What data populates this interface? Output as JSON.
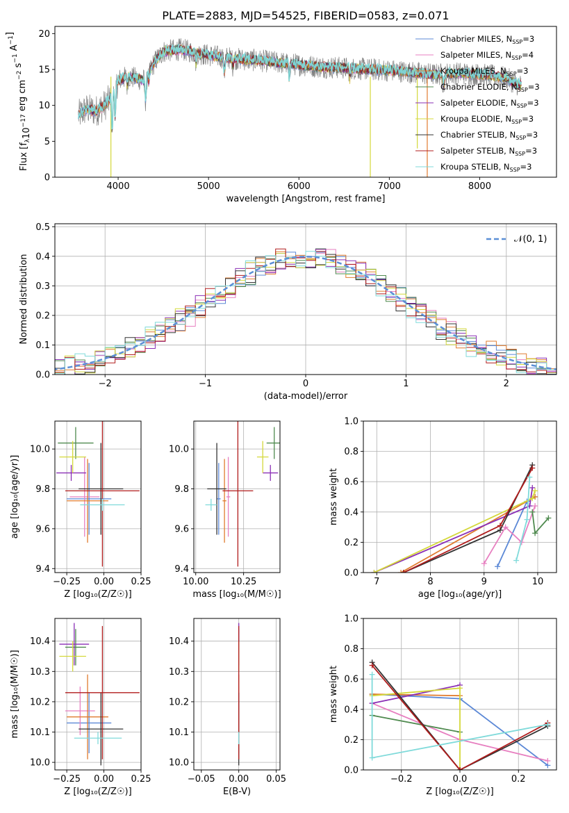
{
  "colors": {
    "ch_miles": "#5b88d6",
    "sa_miles": "#e77fc0",
    "kr_miles": "#e07b2e",
    "ch_elodie": "#4f8a4f",
    "sa_elodie": "#8a2fb5",
    "kr_elodie": "#d4d83a",
    "ch_stelib": "#333333",
    "sa_stelib": "#b01c1c",
    "kr_stelib": "#7fdada",
    "data": "#808080",
    "gaussian": "#5b8fd6"
  },
  "chart_data": [
    {
      "id": "spectrum",
      "type": "line",
      "title": "PLATE=2883, MJD=54525, FIBERID=0583, z=0.071",
      "xlabel": "wavelength [Angstrom, rest frame]",
      "ylabel": "Flux [f_λ 10^-17 erg cm^-2 s^-1 A^-1]",
      "xlim": [
        3300,
        8850
      ],
      "ylim": [
        0,
        21
      ],
      "xticks": [
        "4000",
        "5000",
        "6000",
        "7000",
        "8000"
      ],
      "yticks": [
        "0",
        "5",
        "10",
        "15",
        "20"
      ],
      "legend": "top-right",
      "series": [
        {
          "name": "Chabrier MILES, N_SSP=3",
          "label_main": "Chabrier MILES, N",
          "label_sub": "SSP",
          "label_end": "=3",
          "color_key": "ch_miles"
        },
        {
          "name": "Salpeter MILES, N_SSP=4",
          "label_main": "Salpeter MILES, N",
          "label_sub": "SSP",
          "label_end": "=4",
          "color_key": "sa_miles"
        },
        {
          "name": "Kroupa MILES, N_SSP=3",
          "label_main": "Kroupa MILES, N",
          "label_sub": "SSP",
          "label_end": "=3",
          "color_key": "kr_miles"
        },
        {
          "name": "Chabrier ELODIE, N_SSP=3",
          "label_main": "Chabrier ELODIE, N",
          "label_sub": "SSP",
          "label_end": "=3",
          "color_key": "ch_elodie"
        },
        {
          "name": "Salpeter ELODIE, N_SSP=3",
          "label_main": "Salpeter ELODIE, N",
          "label_sub": "SSP",
          "label_end": "=3",
          "color_key": "sa_elodie"
        },
        {
          "name": "Kroupa ELODIE, N_SSP=3",
          "label_main": "Kroupa ELODIE, N",
          "label_sub": "SSP",
          "label_end": "=3",
          "color_key": "kr_elodie"
        },
        {
          "name": "Chabrier STELIB, N_SSP=3",
          "label_main": "Chabrier STELIB, N",
          "label_sub": "SSP",
          "label_end": "=3",
          "color_key": "ch_stelib"
        },
        {
          "name": "Salpeter STELIB, N_SSP=3",
          "label_main": "Salpeter STELIB, N",
          "label_sub": "SSP",
          "label_end": "=3",
          "color_key": "sa_stelib"
        },
        {
          "name": "Kroupa STELIB, N_SSP=3",
          "label_main": "Kroupa STELIB, N",
          "label_sub": "SSP",
          "label_end": "=3",
          "color_key": "kr_stelib"
        }
      ],
      "continuum": {
        "x": [
          3550,
          3650,
          3750,
          3850,
          3950,
          4000,
          4100,
          4300,
          4400,
          4500,
          4700,
          4900,
          5100,
          5300,
          5600,
          5900,
          6200,
          6500,
          6800,
          7100,
          7300,
          7500,
          7800,
          8100,
          8300,
          8400,
          8450
        ],
        "y": [
          8.5,
          9.5,
          9.2,
          10.0,
          11.5,
          13.5,
          14.0,
          13.5,
          16.0,
          17.5,
          17.8,
          17.2,
          16.8,
          16.5,
          16.2,
          15.8,
          15.4,
          15.2,
          15.0,
          14.8,
          14.5,
          14.3,
          14.5,
          14.2,
          13.8,
          13.0,
          12.8
        ]
      }
    },
    {
      "id": "residuals",
      "type": "bar",
      "xlabel": "(data-model)/error",
      "ylabel": "Normed distribution",
      "xlim": [
        -2.5,
        2.5
      ],
      "ylim": [
        0,
        0.51
      ],
      "xticks": [
        "−2",
        "−1",
        "0",
        "1",
        "2"
      ],
      "yticks": [
        "0.0",
        "0.1",
        "0.2",
        "0.3",
        "0.4",
        "0.5"
      ],
      "legend_label": "𝒩(0, 1)",
      "gaussian": {
        "mean": 0,
        "sigma": 1
      }
    },
    {
      "id": "age-vs-z",
      "type": "scatter",
      "xlabel": "Z [log₁₀(Z/Z☉)]",
      "ylabel": "age  [log₁₀(age/yr)]",
      "xlim": [
        -0.33,
        0.25
      ],
      "ylim": [
        9.38,
        10.14
      ],
      "xticks": [
        "−0.25",
        "0.00",
        "0.25"
      ],
      "yticks": [
        "9.4",
        "9.6",
        "9.8",
        "10.0"
      ],
      "points": [
        {
          "color_key": "ch_miles",
          "x": -0.1,
          "y": 9.75,
          "xerr": 0.15,
          "yerr": 0.18
        },
        {
          "color_key": "sa_miles",
          "x": -0.13,
          "y": 9.76,
          "xerr": 0.1,
          "yerr": 0.2
        },
        {
          "color_key": "kr_miles",
          "x": -0.11,
          "y": 9.74,
          "xerr": 0.14,
          "yerr": 0.21
        },
        {
          "color_key": "ch_elodie",
          "x": -0.19,
          "y": 10.03,
          "xerr": 0.12,
          "yerr": 0.08
        },
        {
          "color_key": "sa_elodie",
          "x": -0.22,
          "y": 9.88,
          "xerr": 0.1,
          "yerr": 0.04
        },
        {
          "color_key": "kr_elodie",
          "x": -0.21,
          "y": 9.96,
          "xerr": 0.09,
          "yerr": 0.08
        },
        {
          "color_key": "ch_stelib",
          "x": -0.02,
          "y": 9.8,
          "xerr": 0.15,
          "yerr": 0.23
        },
        {
          "color_key": "sa_stelib",
          "x": -0.01,
          "y": 9.79,
          "xerr": 0.25,
          "yerr": 0.38
        },
        {
          "color_key": "kr_stelib",
          "x": -0.01,
          "y": 9.72,
          "xerr": 0.15,
          "yerr": 0.03
        }
      ]
    },
    {
      "id": "age-vs-mass",
      "type": "scatter",
      "xlabel": "mass [log₁₀(M/M☉)]",
      "ylabel": "",
      "xlim": [
        9.99,
        10.44
      ],
      "ylim": [
        9.38,
        10.14
      ],
      "xticks": [
        "10.00",
        "10.25"
      ],
      "yticks": [
        "9.4",
        "9.6",
        "9.8",
        "10.0"
      ],
      "points": [
        {
          "color_key": "ch_miles",
          "x": 10.12,
          "y": 9.75,
          "xerr": 0.01,
          "yerr": 0.18
        },
        {
          "color_key": "sa_miles",
          "x": 10.17,
          "y": 9.76,
          "xerr": 0.01,
          "yerr": 0.2
        },
        {
          "color_key": "kr_miles",
          "x": 10.15,
          "y": 9.74,
          "xerr": 0.01,
          "yerr": 0.21
        },
        {
          "color_key": "ch_elodie",
          "x": 10.41,
          "y": 10.03,
          "xerr": 0.04,
          "yerr": 0.08
        },
        {
          "color_key": "sa_elodie",
          "x": 10.39,
          "y": 9.88,
          "xerr": 0.04,
          "yerr": 0.04
        },
        {
          "color_key": "kr_elodie",
          "x": 10.35,
          "y": 9.96,
          "xerr": 0.03,
          "yerr": 0.08
        },
        {
          "color_key": "ch_stelib",
          "x": 10.11,
          "y": 9.8,
          "xerr": 0.05,
          "yerr": 0.23
        },
        {
          "color_key": "sa_stelib",
          "x": 10.22,
          "y": 9.79,
          "xerr": 0.08,
          "yerr": 0.38
        },
        {
          "color_key": "kr_stelib",
          "x": 10.08,
          "y": 9.72,
          "xerr": 0.03,
          "yerr": 0.03
        }
      ]
    },
    {
      "id": "mass-weight-vs-age",
      "type": "line",
      "xlabel": "age  [log₁₀(age/yr)]",
      "ylabel": "mass weight",
      "xlim": [
        6.75,
        10.35
      ],
      "ylim": [
        0,
        1.0
      ],
      "xticks": [
        "7",
        "8",
        "9",
        "10"
      ],
      "yticks": [
        "0.0",
        "0.2",
        "0.4",
        "0.6",
        "0.8",
        "1.0"
      ],
      "series": [
        {
          "color_key": "ch_miles",
          "x": [
            9.25,
            9.8,
            9.95
          ],
          "y": [
            0.04,
            0.47,
            0.5
          ]
        },
        {
          "color_key": "sa_miles",
          "x": [
            9.0,
            9.4,
            9.7,
            9.95
          ],
          "y": [
            0.06,
            0.3,
            0.2,
            0.44
          ]
        },
        {
          "color_key": "kr_miles",
          "x": [
            7.45,
            9.95
          ],
          "y": [
            0.0,
            0.5
          ]
        },
        {
          "color_key": "ch_elodie",
          "x": [
            9.9,
            9.95,
            10.2
          ],
          "y": [
            0.4,
            0.26,
            0.36
          ]
        },
        {
          "color_key": "sa_elodie",
          "x": [
            6.95,
            9.85,
            9.9
          ],
          "y": [
            0.0,
            0.44,
            0.56
          ]
        },
        {
          "color_key": "kr_elodie",
          "x": [
            6.95,
            9.9,
            9.95
          ],
          "y": [
            0.0,
            0.49,
            0.54
          ]
        },
        {
          "color_key": "ch_stelib",
          "x": [
            7.5,
            9.3,
            9.9
          ],
          "y": [
            0.0,
            0.28,
            0.71
          ]
        },
        {
          "color_key": "sa_stelib",
          "x": [
            7.5,
            9.3,
            9.9
          ],
          "y": [
            0.0,
            0.31,
            0.69
          ]
        },
        {
          "color_key": "kr_stelib",
          "x": [
            9.6,
            9.8,
            9.85
          ],
          "y": [
            0.08,
            0.35,
            0.63
          ]
        }
      ]
    },
    {
      "id": "mass-vs-z",
      "type": "scatter",
      "xlabel": "Z [log₁₀(Z/Z☉)]",
      "ylabel": "mass [log₁₀(M/M☉)]",
      "xlim": [
        -0.33,
        0.25
      ],
      "ylim": [
        9.975,
        10.475
      ],
      "xticks": [
        "−0.25",
        "0.00",
        "0.25"
      ],
      "yticks": [
        "10.0",
        "10.1",
        "10.2",
        "10.3",
        "10.4"
      ],
      "points": [
        {
          "color_key": "ch_miles",
          "x": -0.1,
          "y": 10.13,
          "xerr": 0.15,
          "yerr": 0.1
        },
        {
          "color_key": "sa_miles",
          "x": -0.16,
          "y": 10.17,
          "xerr": 0.1,
          "yerr": 0.08
        },
        {
          "color_key": "kr_miles",
          "x": -0.11,
          "y": 10.15,
          "xerr": 0.14,
          "yerr": 0.14
        },
        {
          "color_key": "ch_elodie",
          "x": -0.19,
          "y": 10.38,
          "xerr": 0.07,
          "yerr": 0.06
        },
        {
          "color_key": "sa_elodie",
          "x": -0.2,
          "y": 10.39,
          "xerr": 0.1,
          "yerr": 0.07
        },
        {
          "color_key": "kr_elodie",
          "x": -0.21,
          "y": 10.35,
          "xerr": 0.09,
          "yerr": 0.05
        },
        {
          "color_key": "ch_stelib",
          "x": -0.02,
          "y": 10.11,
          "xerr": 0.15,
          "yerr": 0.12
        },
        {
          "color_key": "sa_stelib",
          "x": -0.01,
          "y": 10.23,
          "xerr": 0.25,
          "yerr": 0.22
        },
        {
          "color_key": "kr_stelib",
          "x": -0.04,
          "y": 10.08,
          "xerr": 0.16,
          "yerr": 0.02
        }
      ]
    },
    {
      "id": "mass-vs-ebv",
      "type": "scatter",
      "xlabel": "E(B-V)",
      "ylabel": "",
      "xlim": [
        -0.06,
        0.055
      ],
      "ylim": [
        9.975,
        10.475
      ],
      "xticks": [
        "−0.05",
        "0.00",
        "0.05"
      ],
      "yticks": [
        "10.0",
        "10.1",
        "10.2",
        "10.3",
        "10.4"
      ],
      "points": [
        {
          "color_key": "ch_miles",
          "x": 0.0,
          "y": 10.13,
          "xerr": 0,
          "yerr": 0.1
        },
        {
          "color_key": "sa_miles",
          "x": 0.0,
          "y": 10.17,
          "xerr": 0,
          "yerr": 0.08
        },
        {
          "color_key": "kr_miles",
          "x": 0.0,
          "y": 10.15,
          "xerr": 0,
          "yerr": 0.14
        },
        {
          "color_key": "ch_elodie",
          "x": 0.0,
          "y": 10.38,
          "xerr": 0,
          "yerr": 0.06
        },
        {
          "color_key": "sa_elodie",
          "x": 0.0,
          "y": 10.39,
          "xerr": 0,
          "yerr": 0.07
        },
        {
          "color_key": "kr_elodie",
          "x": 0.0,
          "y": 10.35,
          "xerr": 0,
          "yerr": 0.05
        },
        {
          "color_key": "ch_stelib",
          "x": 0.0,
          "y": 10.11,
          "xerr": 0,
          "yerr": 0.12
        },
        {
          "color_key": "sa_stelib",
          "x": 0.0,
          "y": 10.23,
          "xerr": 0,
          "yerr": 0.22
        },
        {
          "color_key": "kr_stelib",
          "x": 0.0,
          "y": 10.08,
          "xerr": 0,
          "yerr": 0.02
        }
      ]
    },
    {
      "id": "mass-weight-vs-z",
      "type": "line",
      "xlabel": "Z [log₁₀(Z/Z☉)]",
      "ylabel": "mass weight",
      "xlim": [
        -0.33,
        0.33
      ],
      "ylim": [
        0,
        1.0
      ],
      "xticks": [
        "−0.2",
        "0.0",
        "0.2"
      ],
      "yticks": [
        "0.0",
        "0.2",
        "0.4",
        "0.6",
        "0.8",
        "1.0"
      ],
      "series": [
        {
          "color_key": "ch_miles",
          "x": [
            -0.3,
            0.0,
            0.3
          ],
          "y": [
            0.5,
            0.47,
            0.03
          ]
        },
        {
          "color_key": "sa_miles",
          "x": [
            -0.3,
            0.0,
            0.3
          ],
          "y": [
            0.44,
            0.2,
            0.06
          ]
        },
        {
          "color_key": "kr_miles",
          "x": [
            -0.3,
            0.0
          ],
          "y": [
            0.5,
            0.49
          ]
        },
        {
          "color_key": "ch_elodie",
          "x": [
            -0.3,
            0.0
          ],
          "y": [
            0.36,
            0.25
          ]
        },
        {
          "color_key": "sa_elodie",
          "x": [
            -0.3,
            0.0
          ],
          "y": [
            0.44,
            0.56
          ]
        },
        {
          "color_key": "kr_elodie",
          "x": [
            -0.3,
            0.0,
            0.0
          ],
          "y": [
            0.49,
            0.54,
            0.0
          ]
        },
        {
          "color_key": "ch_stelib",
          "x": [
            -0.3,
            0.0,
            0.3
          ],
          "y": [
            0.71,
            0.0,
            0.29
          ]
        },
        {
          "color_key": "sa_stelib",
          "x": [
            -0.3,
            0.0,
            0.3
          ],
          "y": [
            0.69,
            0.0,
            0.31
          ]
        },
        {
          "color_key": "kr_stelib",
          "x": [
            -0.3,
            -0.3,
            0.3
          ],
          "y": [
            0.63,
            0.08,
            0.3
          ]
        }
      ]
    }
  ]
}
